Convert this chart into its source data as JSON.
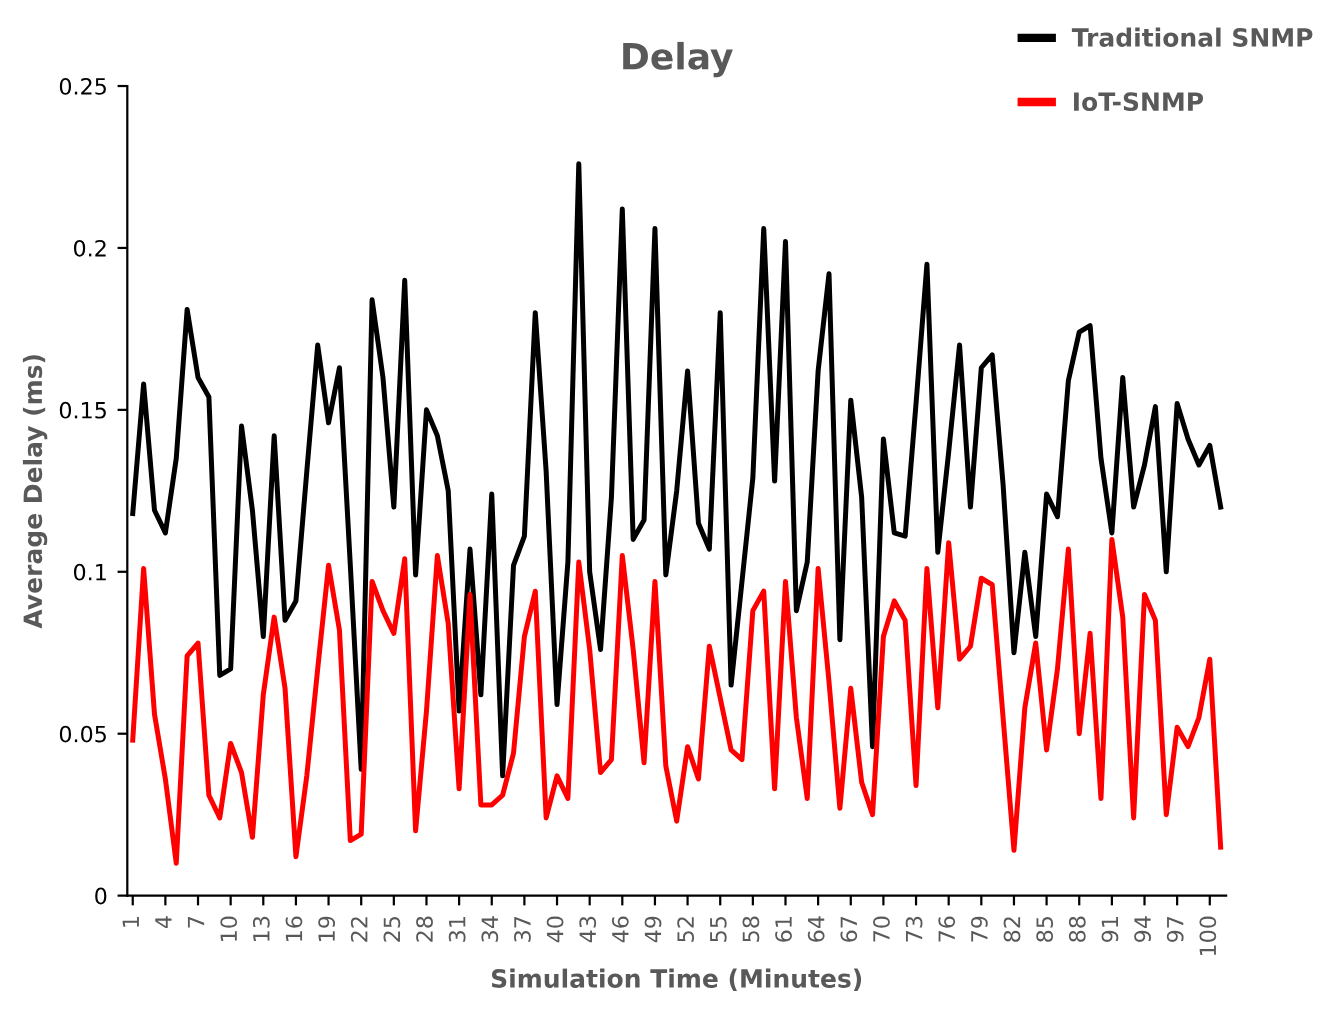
{
  "chart_data": {
    "type": "line",
    "title": "Delay",
    "xlabel": "Simulation Time (Minutes)",
    "ylabel": "Average Delay (ms)",
    "categories": [
      "1",
      null,
      null,
      "4",
      null,
      null,
      "7",
      null,
      null,
      "10",
      null,
      null,
      "13",
      null,
      null,
      "16",
      null,
      null,
      "19",
      null,
      null,
      "22",
      null,
      null,
      "25",
      null,
      null,
      "28",
      null,
      null,
      "31",
      null,
      null,
      "34",
      null,
      null,
      "37",
      null,
      null,
      "40",
      null,
      null,
      "43",
      null,
      null,
      "46",
      null,
      null,
      "49",
      null,
      null,
      "52",
      null,
      null,
      "55",
      null,
      null,
      "58",
      null,
      null,
      "61",
      null,
      null,
      "64",
      null,
      null,
      "67",
      null,
      null,
      "70",
      null,
      null,
      "73",
      null,
      null,
      "76",
      null,
      null,
      "79",
      null,
      null,
      "82",
      null,
      null,
      "85",
      null,
      null,
      "88",
      null,
      null,
      "91",
      null,
      null,
      "94",
      null,
      null,
      "97",
      null,
      null,
      "100",
      null
    ],
    "series": [
      {
        "name": "Traditional SNMP",
        "color": "#000000",
        "values": [
          0.118,
          0.158,
          0.119,
          0.112,
          0.135,
          0.181,
          0.16,
          0.154,
          0.068,
          0.07,
          0.145,
          0.119,
          0.08,
          0.142,
          0.085,
          0.091,
          0.131,
          0.17,
          0.146,
          0.163,
          0.102,
          0.039,
          0.184,
          0.16,
          0.12,
          0.19,
          0.099,
          0.15,
          0.142,
          0.125,
          0.057,
          0.107,
          0.062,
          0.124,
          0.037,
          0.102,
          0.111,
          0.18,
          0.131,
          0.059,
          0.103,
          0.226,
          0.1,
          0.076,
          0.123,
          0.212,
          0.11,
          0.116,
          0.206,
          0.099,
          0.125,
          0.162,
          0.115,
          0.107,
          0.18,
          0.065,
          0.097,
          0.129,
          0.206,
          0.128,
          0.202,
          0.088,
          0.103,
          0.162,
          0.192,
          0.079,
          0.153,
          0.123,
          0.046,
          0.141,
          0.112,
          0.111,
          0.152,
          0.195,
          0.106,
          0.137,
          0.17,
          0.12,
          0.163,
          0.167,
          0.127,
          0.075,
          0.106,
          0.08,
          0.124,
          0.117,
          0.159,
          0.174,
          0.176,
          0.135,
          0.112,
          0.16,
          0.12,
          0.133,
          0.151,
          0.1,
          0.152,
          0.141,
          0.133,
          0.139,
          0.12
        ]
      },
      {
        "name": "IoT-SNMP",
        "color": "#ff0000",
        "values": [
          0.048,
          0.101,
          0.056,
          0.036,
          0.01,
          0.074,
          0.078,
          0.031,
          0.024,
          0.047,
          0.038,
          0.018,
          0.062,
          0.086,
          0.064,
          0.012,
          0.037,
          0.07,
          0.102,
          0.082,
          0.017,
          0.019,
          0.097,
          0.088,
          0.081,
          0.104,
          0.02,
          0.057,
          0.105,
          0.084,
          0.033,
          0.093,
          0.028,
          0.028,
          0.031,
          0.044,
          0.08,
          0.094,
          0.024,
          0.037,
          0.03,
          0.103,
          0.076,
          0.038,
          0.042,
          0.105,
          0.076,
          0.041,
          0.097,
          0.04,
          0.023,
          0.046,
          0.036,
          0.077,
          0.061,
          0.045,
          0.042,
          0.088,
          0.094,
          0.033,
          0.097,
          0.055,
          0.03,
          0.101,
          0.066,
          0.027,
          0.064,
          0.035,
          0.025,
          0.08,
          0.091,
          0.085,
          0.034,
          0.101,
          0.058,
          0.109,
          0.073,
          0.077,
          0.098,
          0.096,
          0.055,
          0.014,
          0.058,
          0.078,
          0.045,
          0.07,
          0.107,
          0.05,
          0.081,
          0.03,
          0.11,
          0.086,
          0.024,
          0.093,
          0.085,
          0.025,
          0.052,
          0.046,
          0.055,
          0.073,
          0.015
        ]
      }
    ],
    "ylim": [
      0,
      0.25
    ],
    "yticks": [
      0,
      0.05,
      0.1,
      0.15,
      0.2,
      0.25
    ],
    "grid": false,
    "legend": "top right",
    "marker": "none",
    "line_style": "solid"
  }
}
